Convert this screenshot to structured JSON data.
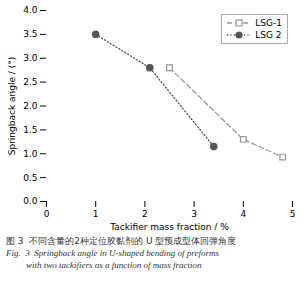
{
  "chart_data": {
    "type": "line",
    "xlabel": "Tackifier mass fraction / %",
    "ylabel": "Springback angle / (°)",
    "series": [
      {
        "name": "LSG-1",
        "color": "#999999",
        "marker": "square",
        "line_style": "dashed",
        "x": [
          2.5,
          4.0,
          4.8
        ],
        "values": [
          2.8,
          1.3,
          0.93
        ]
      },
      {
        "name": "LSG 2",
        "color": "#555555",
        "marker": "circle",
        "line_style": "dotted",
        "x": [
          1.0,
          2.1,
          3.4
        ],
        "values": [
          3.5,
          2.8,
          1.15
        ]
      }
    ],
    "xlim": [
      0,
      5
    ],
    "xticks": [
      0,
      1,
      2,
      3,
      4,
      5
    ],
    "ylim": [
      0.0,
      4.0
    ],
    "yticks": [
      {
        "value": 0,
        "label": "0.0"
      },
      0.5,
      {
        "value": 1,
        "label": "1.0"
      },
      1.5,
      {
        "value": 2,
        "label": "2.0"
      },
      2.5,
      {
        "value": 3,
        "label": "3.0"
      },
      3.5,
      {
        "value": 4,
        "label": "4.0"
      }
    ],
    "legend": "upper right",
    "grid": false,
    "caption": [
      "图 3  不同含量的2种定位胶黏剂的 U 型预成型体回弹角度",
      "Fig.  3  Springback angle in U-shaped bending of preforms",
      "with two tackifiers as a function of mass fraction"
    ]
  }
}
